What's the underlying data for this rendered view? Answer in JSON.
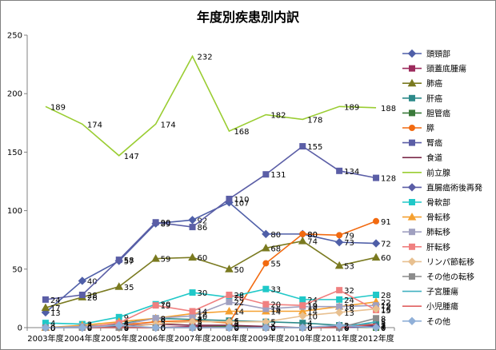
{
  "chart_data": {
    "type": "line",
    "title": "年度別疾患別内訳",
    "xlabel": "",
    "ylabel": "",
    "ylim": [
      0,
      250
    ],
    "yticks": [
      0,
      50,
      100,
      150,
      200,
      250
    ],
    "grid": false,
    "legend_position": "right",
    "categories": [
      "2003年度",
      "2004年度",
      "2005年度",
      "2006年度",
      "2007年度",
      "2008年度",
      "2009年度",
      "2010年度",
      "2011年度",
      "2012年度"
    ],
    "series": [
      {
        "name": "頭頸部",
        "color": "#4f5fa8",
        "marker": "diamond",
        "values": [
          13,
          40,
          57,
          89,
          92,
          107,
          80,
          80,
          73,
          72
        ]
      },
      {
        "name": "頭蓋底腫瘍",
        "color": "#9c2a5c",
        "marker": "square",
        "values": [
          0,
          0,
          0,
          0,
          1,
          1,
          0,
          0,
          0,
          1
        ]
      },
      {
        "name": "肺癌",
        "color": "#7a7a20",
        "marker": "triangle",
        "values": [
          17,
          26,
          35,
          59,
          60,
          50,
          68,
          74,
          53,
          60
        ]
      },
      {
        "name": "肝癌",
        "color": "#2d8a8a",
        "marker": "square",
        "values": [
          0,
          1,
          3,
          8,
          7,
          6,
          5,
          4,
          2,
          3
        ]
      },
      {
        "name": "胆管癌",
        "color": "#3a7a3a",
        "marker": "square",
        "values": [
          0,
          0,
          0,
          0,
          0,
          1,
          0,
          0,
          1,
          0
        ]
      },
      {
        "name": "膵",
        "color": "#f26a10",
        "marker": "circle",
        "values": [
          0,
          0,
          2,
          5,
          6,
          4,
          55,
          80,
          79,
          91
        ]
      },
      {
        "name": "腎癌",
        "color": "#5b5ea6",
        "marker": "square",
        "values": [
          24,
          28,
          58,
          90,
          86,
          110,
          131,
          155,
          134,
          128
        ]
      },
      {
        "name": "食道",
        "color": "#7a2a4a",
        "marker": "none",
        "values": [
          0,
          0,
          1,
          3,
          2,
          2,
          1,
          0,
          1,
          2
        ]
      },
      {
        "name": "前立腺",
        "color": "#9acd32",
        "marker": "none",
        "values": [
          189,
          174,
          147,
          174,
          232,
          168,
          182,
          178,
          189,
          188
        ]
      },
      {
        "name": "直腸癌術後再発",
        "color": "#5b5ea6",
        "marker": "diamond",
        "values": [
          0,
          0,
          0,
          0,
          0,
          0,
          0,
          0,
          0,
          1
        ]
      },
      {
        "name": "骨軟部",
        "color": "#20c8c8",
        "marker": "square",
        "values": [
          4,
          3,
          9,
          20,
          30,
          26,
          33,
          24,
          24,
          28
        ]
      },
      {
        "name": "骨転移",
        "color": "#f5a030",
        "marker": "triangle",
        "values": [
          0,
          2,
          5,
          8,
          12,
          14,
          14,
          14,
          18,
          22
        ]
      },
      {
        "name": "肺転移",
        "color": "#a0a0c0",
        "marker": "square",
        "values": [
          0,
          1,
          2,
          8,
          10,
          22,
          16,
          18,
          18,
          19
        ]
      },
      {
        "name": "肝転移",
        "color": "#f08080",
        "marker": "square",
        "values": [
          0,
          0,
          4,
          19,
          14,
          28,
          20,
          19,
          32,
          15
        ]
      },
      {
        "name": "リンパ節転移",
        "color": "#e8c090",
        "marker": "diamond",
        "values": [
          0,
          0,
          0,
          3,
          5,
          5,
          5,
          10,
          13,
          16
        ]
      },
      {
        "name": "その他の転移",
        "color": "#8c8c8c",
        "marker": "square",
        "values": [
          0,
          0,
          0,
          0,
          0,
          0,
          0,
          0,
          0,
          8
        ]
      },
      {
        "name": "子宮腫瘍",
        "color": "#40b0c0",
        "marker": "none",
        "values": [
          0,
          0,
          0,
          0,
          0,
          0,
          0,
          0,
          0,
          5
        ]
      },
      {
        "name": "小児腫瘍",
        "color": "#e06060",
        "marker": "none",
        "values": [
          0,
          0,
          0,
          0,
          0,
          0,
          0,
          0,
          0,
          3
        ]
      },
      {
        "name": "その他",
        "color": "#90b0d8",
        "marker": "diamond",
        "values": [
          0,
          0,
          2,
          0,
          0,
          0,
          0,
          0,
          2,
          0
        ]
      }
    ]
  }
}
